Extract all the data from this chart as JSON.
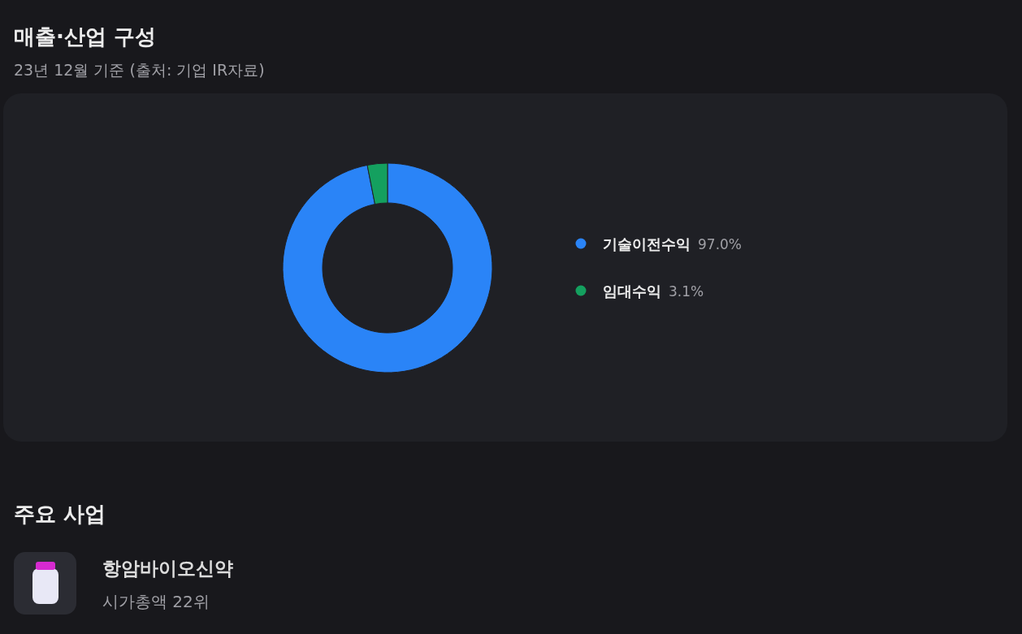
{
  "chart_data": {
    "type": "donut",
    "title": "매출·산업 구성",
    "subtitle": "23년 12월 기준 (출처: 기업 IR자료)",
    "categories": [
      "기술이전수익",
      "임대수익"
    ],
    "values": [
      97.0,
      3.1
    ],
    "colors": [
      "#2a84f7",
      "#14a05f"
    ],
    "value_labels": [
      "97.0%",
      "3.1%"
    ],
    "legend": "right",
    "annotations": [
      "주요 사업",
      "항암바이오신약",
      "시가총액 22위"
    ]
  }
}
